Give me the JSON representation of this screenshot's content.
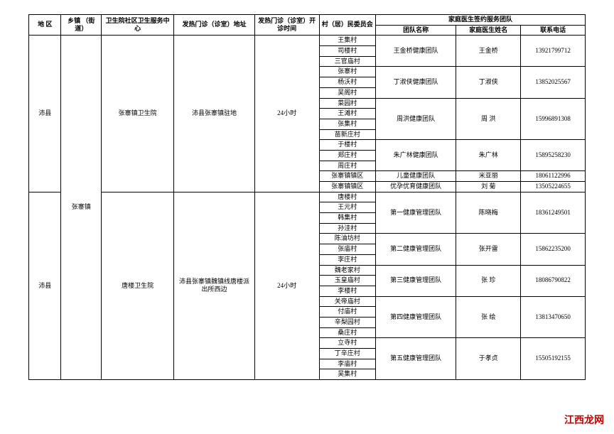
{
  "headers": {
    "region": "地 区",
    "town": "乡镇\n（街道）",
    "center": "卫生院社区卫生服务中心",
    "addr": "发热门诊（诊室）地址",
    "time": "发热门诊（诊室）开诊时间",
    "committee": "村（居）民委员会",
    "teamGroup": "家庭医生签约服务团队",
    "teamName": "团队名称",
    "doctorName": "家庭医生姓名",
    "phone": "联系电话"
  },
  "region1": "沛县",
  "region2": "沛县",
  "town": "张寨镇",
  "center1": "张寨镇卫生院",
  "center2": "唐楼卫生院",
  "addr1": "沛县张寨镇驻地",
  "addr2": "沛县张寨镇魏镇线唐楼派出所西边",
  "time": "24小时",
  "villages1": [
    "王集村",
    "司楼村",
    "三官庙村",
    "张寨村",
    "杨沃村",
    "吴阁村",
    "菜园村",
    "王滩村",
    "张集村",
    "苗新庄村",
    "于楼村",
    "郑庄村",
    "周庄村",
    "张寨镇镇区",
    "张寨镇镇区"
  ],
  "villages2": [
    "唐楼村",
    "王元村",
    "韩集村",
    "孙洼村",
    "陈油坊村",
    "张庙村",
    "李庄村",
    "魏老家村",
    "玉皇庙村",
    "李楼村",
    "关帝庙村",
    "付庙村",
    "辛梨园村",
    "桑庄村",
    "立寺村",
    "丁辛庄村",
    "李庙村",
    "吴集村"
  ],
  "teams1": [
    {
      "name": "王金桥健康团队",
      "doctor": "王金桥",
      "phone": "13921799712",
      "span": 3
    },
    {
      "name": "丁淑侠健康团队",
      "doctor": "丁淑侠",
      "phone": "13852025567",
      "span": 3
    },
    {
      "name": "周洪健康团队",
      "doctor": "周 洪",
      "phone": "15996891308",
      "span": 4
    },
    {
      "name": "朱广林健康团队",
      "doctor": "朱广林",
      "phone": "15895258230",
      "span": 3
    },
    {
      "name": "儿童健康团队",
      "doctor": "米亚丽",
      "phone": "18061122996",
      "span": 1
    },
    {
      "name": "优孕优育健康团队",
      "doctor": "刘 菊",
      "phone": "13505224655",
      "span": 1
    }
  ],
  "teams2": [
    {
      "name": "第一健康管理团队",
      "doctor": "陈晓梅",
      "phone": "18361249501",
      "span": 4
    },
    {
      "name": "第二健康管理团队",
      "doctor": "张开雷",
      "phone": "15862235200",
      "span": 3
    },
    {
      "name": "第三健康管理团队",
      "doctor": "张 珍",
      "phone": "18086790822",
      "span": 3
    },
    {
      "name": "第四健康管理团队",
      "doctor": "张 绘",
      "phone": "13813470650",
      "span": 4
    },
    {
      "name": "第五健康管理团队",
      "doctor": "于孝贞",
      "phone": "15505192155",
      "span": 4
    }
  ],
  "watermark": "江西龙网"
}
